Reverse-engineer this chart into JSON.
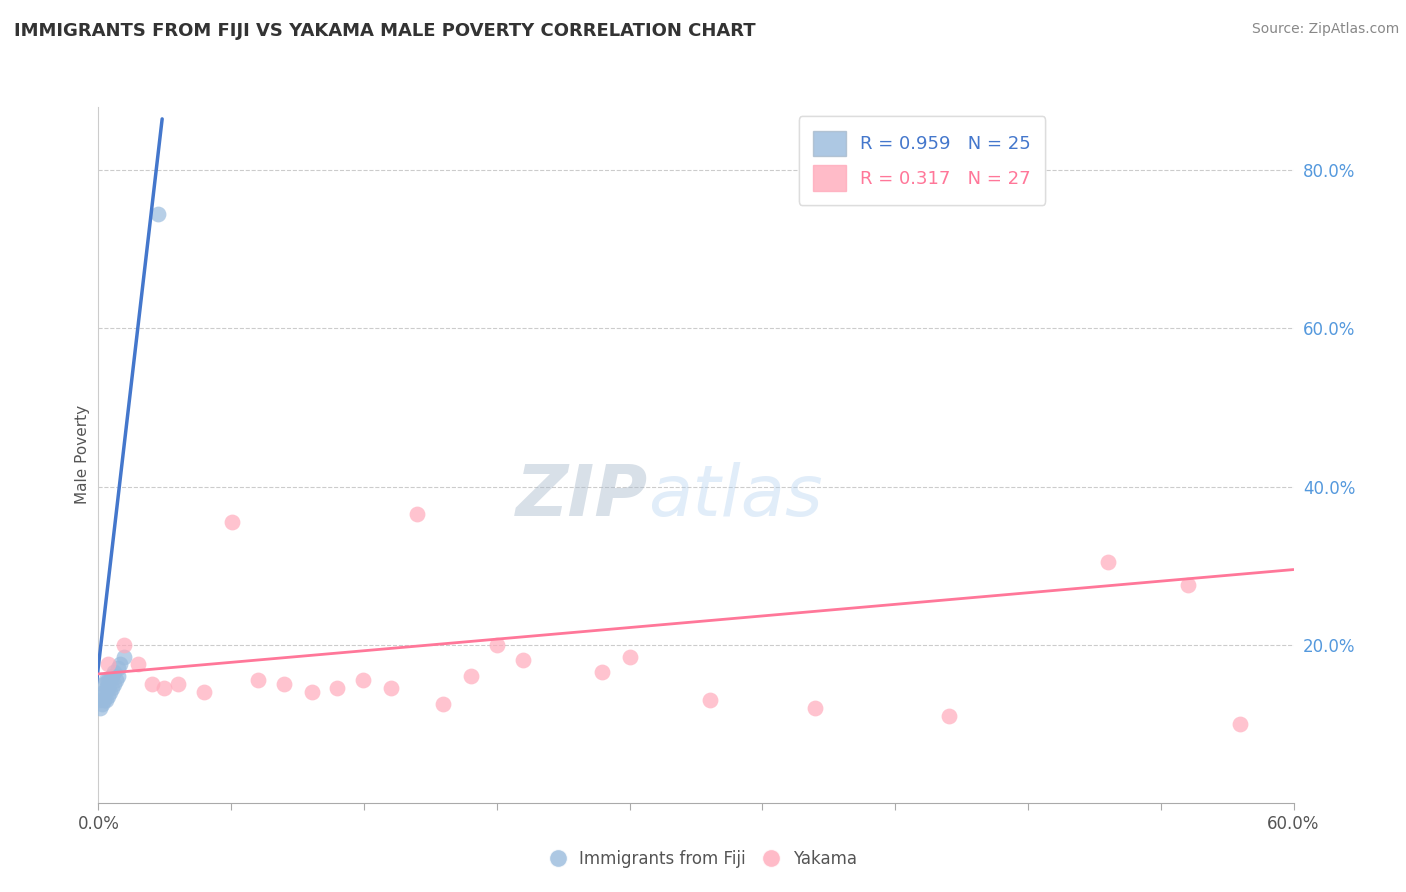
{
  "title": "IMMIGRANTS FROM FIJI VS YAKAMA MALE POVERTY CORRELATION CHART",
  "source": "Source: ZipAtlas.com",
  "ylabel": "Male Poverty",
  "xlim": [
    0.0,
    0.6
  ],
  "ylim": [
    0.0,
    0.88
  ],
  "xticks": [
    0.0,
    0.06667,
    0.13333,
    0.2,
    0.26667,
    0.33333,
    0.4,
    0.46667,
    0.53333,
    0.6
  ],
  "xticklabels_edge": [
    "0.0%",
    "60.0%"
  ],
  "yticks_right": [
    0.2,
    0.4,
    0.6,
    0.8
  ],
  "yticklabels_right": [
    "20.0%",
    "40.0%",
    "60.0%",
    "80.0%"
  ],
  "blue_color": "#99BBDD",
  "pink_color": "#FFAABB",
  "blue_line_color": "#4477CC",
  "pink_line_color": "#FF7799",
  "blue_R": 0.959,
  "blue_N": 25,
  "pink_R": 0.317,
  "pink_N": 27,
  "legend1_label": "Immigrants from Fiji",
  "legend2_label": "Yakama",
  "watermark_zip": "ZIP",
  "watermark_atlas": "atlas",
  "background_color": "#ffffff",
  "grid_color": "#cccccc",
  "blue_scatter_x": [
    0.001,
    0.001,
    0.002,
    0.002,
    0.003,
    0.003,
    0.003,
    0.004,
    0.004,
    0.004,
    0.005,
    0.005,
    0.005,
    0.006,
    0.006,
    0.007,
    0.007,
    0.008,
    0.008,
    0.009,
    0.01,
    0.01,
    0.011,
    0.013,
    0.03
  ],
  "blue_scatter_y": [
    0.13,
    0.12,
    0.125,
    0.135,
    0.13,
    0.14,
    0.15,
    0.13,
    0.145,
    0.155,
    0.135,
    0.145,
    0.155,
    0.14,
    0.155,
    0.145,
    0.16,
    0.15,
    0.165,
    0.155,
    0.16,
    0.17,
    0.175,
    0.185,
    0.745
  ],
  "pink_scatter_x": [
    0.005,
    0.013,
    0.02,
    0.027,
    0.033,
    0.04,
    0.053,
    0.067,
    0.08,
    0.093,
    0.107,
    0.12,
    0.133,
    0.147,
    0.16,
    0.173,
    0.187,
    0.2,
    0.213,
    0.253,
    0.267,
    0.307,
    0.36,
    0.427,
    0.507,
    0.547,
    0.573
  ],
  "pink_scatter_y": [
    0.175,
    0.2,
    0.175,
    0.15,
    0.145,
    0.15,
    0.14,
    0.355,
    0.155,
    0.15,
    0.14,
    0.145,
    0.155,
    0.145,
    0.365,
    0.125,
    0.16,
    0.2,
    0.18,
    0.165,
    0.185,
    0.13,
    0.12,
    0.11,
    0.305,
    0.275,
    0.1
  ],
  "blue_line_x": [
    -0.005,
    0.032
  ],
  "blue_line_y": [
    0.065,
    0.865
  ],
  "pink_line_x": [
    0.0,
    0.6
  ],
  "pink_line_y": [
    0.163,
    0.295
  ]
}
